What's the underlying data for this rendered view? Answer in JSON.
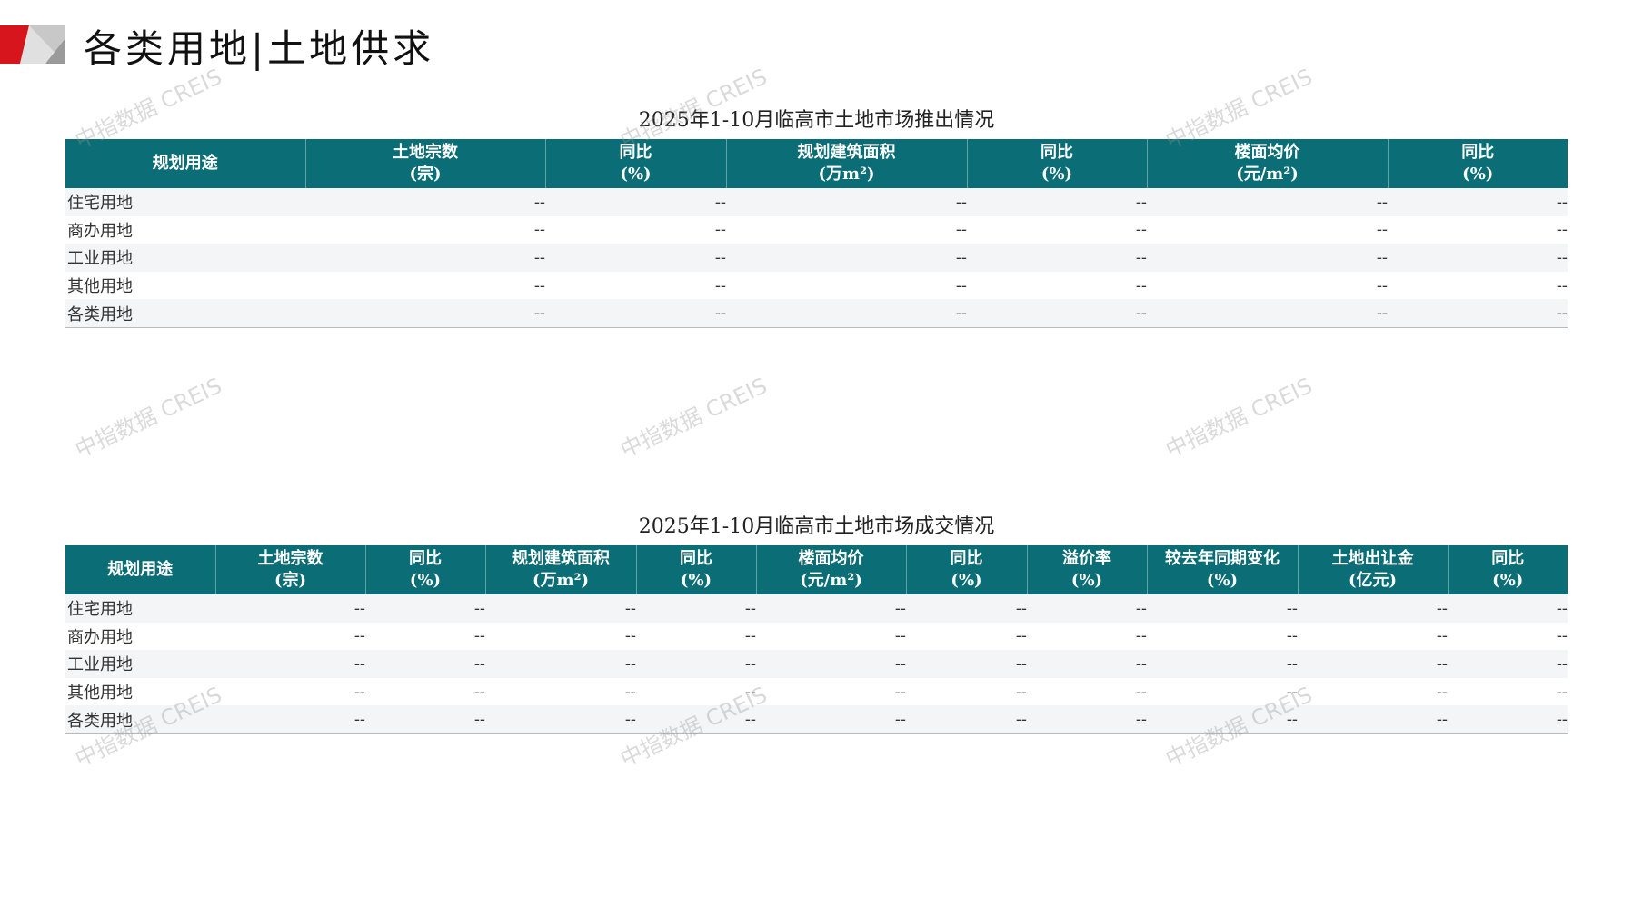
{
  "page_title": "各类用地|土地供求",
  "watermark": "中指数据 CREIS",
  "colors": {
    "header_bg": "#0b6e76",
    "accent_red": "#d7151c",
    "row_alt": "#f4f5f7"
  },
  "supply_table": {
    "caption": "2025年1-10月临高市土地市场推出情况",
    "headers": [
      [
        "规划用途",
        ""
      ],
      [
        "土地宗数",
        "(宗)"
      ],
      [
        "同比",
        "(%)"
      ],
      [
        "规划建筑面积",
        "(万m²)"
      ],
      [
        "同比",
        "(%)"
      ],
      [
        "楼面均价",
        "(元/m²)"
      ],
      [
        "同比",
        "(%)"
      ]
    ],
    "rows": [
      [
        "住宅用地",
        "--",
        "--",
        "--",
        "--",
        "--",
        "--"
      ],
      [
        "商办用地",
        "--",
        "--",
        "--",
        "--",
        "--",
        "--"
      ],
      [
        "工业用地",
        "--",
        "--",
        "--",
        "--",
        "--",
        "--"
      ],
      [
        "其他用地",
        "--",
        "--",
        "--",
        "--",
        "--",
        "--"
      ],
      [
        "各类用地",
        "--",
        "--",
        "--",
        "--",
        "--",
        "--"
      ]
    ]
  },
  "deal_table": {
    "caption": "2025年1-10月临高市土地市场成交情况",
    "headers": [
      [
        "规划用途",
        ""
      ],
      [
        "土地宗数",
        "(宗)"
      ],
      [
        "同比",
        "(%)"
      ],
      [
        "规划建筑面积",
        "(万m²)"
      ],
      [
        "同比",
        "(%)"
      ],
      [
        "楼面均价",
        "(元/m²)"
      ],
      [
        "同比",
        "(%)"
      ],
      [
        "溢价率",
        "(%)"
      ],
      [
        "较去年同期变化",
        "(%)"
      ],
      [
        "土地出让金",
        "(亿元)"
      ],
      [
        "同比",
        "(%)"
      ]
    ],
    "rows": [
      [
        "住宅用地",
        "--",
        "--",
        "--",
        "--",
        "--",
        "--",
        "--",
        "--",
        "--",
        "--"
      ],
      [
        "商办用地",
        "--",
        "--",
        "--",
        "--",
        "--",
        "--",
        "--",
        "--",
        "--",
        "--"
      ],
      [
        "工业用地",
        "--",
        "--",
        "--",
        "--",
        "--",
        "--",
        "--",
        "--",
        "--",
        "--"
      ],
      [
        "其他用地",
        "--",
        "--",
        "--",
        "--",
        "--",
        "--",
        "--",
        "--",
        "--",
        "--"
      ],
      [
        "各类用地",
        "--",
        "--",
        "--",
        "--",
        "--",
        "--",
        "--",
        "--",
        "--",
        "--"
      ]
    ]
  }
}
